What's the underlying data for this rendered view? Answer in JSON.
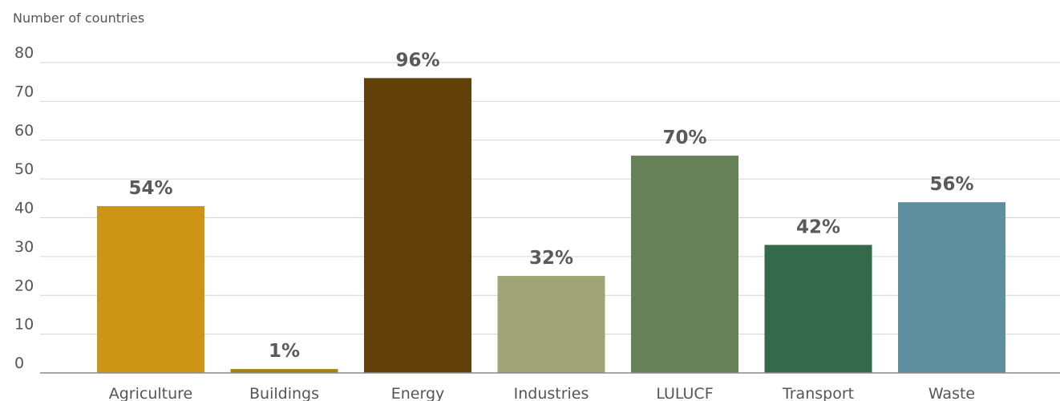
{
  "chart_data": {
    "type": "bar",
    "ylabel": "Number of countries",
    "xlabel": "",
    "ylim": [
      0,
      80
    ],
    "yticks": [
      0,
      10,
      20,
      30,
      40,
      50,
      60,
      70,
      80
    ],
    "grid": true,
    "categories": [
      "Agriculture",
      "Buildings",
      "Energy",
      "Industries",
      "LULUCF",
      "Transport",
      "Waste"
    ],
    "values": [
      43,
      1,
      76,
      25,
      56,
      33,
      44
    ],
    "data_labels": [
      "54%",
      "1%",
      "96%",
      "32%",
      "70%",
      "42%",
      "56%"
    ],
    "colors": [
      "#cc9516",
      "#a8810e",
      "#62400a",
      "#9fa577",
      "#668057",
      "#346a4b",
      "#5f8f9e"
    ]
  }
}
